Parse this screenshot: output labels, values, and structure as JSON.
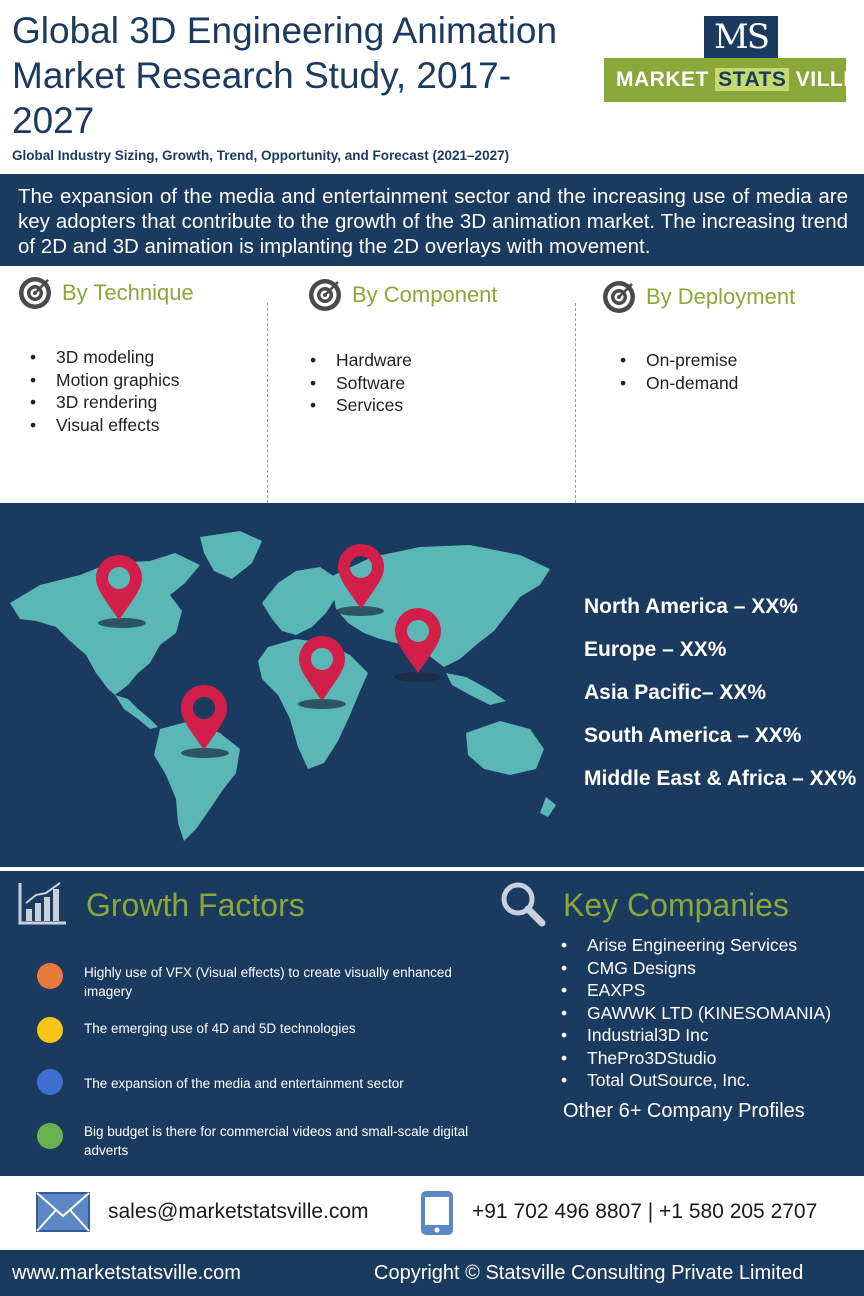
{
  "header": {
    "title": "Global 3D Engineering Animation Market Research Study, 2017-2027",
    "subtitle": "Global Industry Sizing, Growth, Trend, Opportunity, and Forecast (2021–2027)"
  },
  "logo": {
    "monogram": "MS",
    "word1": "MARKET",
    "word2": "STATS",
    "word3": "VILLE"
  },
  "intro": "The expansion of the media and entertainment sector and the increasing use of media are key adopters that contribute to the growth of the 3D animation market. The increasing trend of 2D and 3D animation is implanting the 2D overlays with movement.",
  "segments": [
    {
      "title": "By Technique",
      "items": [
        "3D modeling",
        "Motion graphics",
        "3D rendering",
        "Visual effects"
      ]
    },
    {
      "title": "By Component",
      "items": [
        "Hardware",
        "Software",
        "Services"
      ]
    },
    {
      "title": "By  Deployment",
      "items": [
        "On-premise",
        "On-demand"
      ]
    }
  ],
  "regions": [
    "North America – XX%",
    "Europe – XX%",
    "Asia Pacific– XX%",
    "South America – XX%",
    "Middle East & Africa – XX%"
  ],
  "growth_factors": {
    "title": "Growth Factors",
    "items": [
      {
        "text": "Highly use of VFX (Visual effects) to create visually enhanced imagery",
        "color": "#e8793a"
      },
      {
        "text": "The emerging use of 4D and 5D technologies",
        "color": "#f5c518"
      },
      {
        "text": "The expansion of the media and entertainment sector",
        "color": "#3f6fd1"
      },
      {
        "text": "Big budget is there for commercial videos and small-scale digital adverts",
        "color": "#6ab04c"
      }
    ]
  },
  "key_companies": {
    "title": "Key Companies",
    "items": [
      "Arise Engineering Services",
      "CMG Designs",
      "EAXPS",
      "GAWWK LTD (KINESOMANIA)",
      "Industrial3D Inc",
      "ThePro3DStudio",
      "Total OutSource, Inc."
    ],
    "other": "Other 6+ Company Profiles"
  },
  "contact": {
    "email": "sales@marketstatsville.com",
    "phone": "+91 702 496 8807  |  +1 580 205 2707"
  },
  "footer": {
    "website": "www.marketstatsville.com",
    "copyright": "Copyright © Statsville Consulting Private Limited"
  },
  "colors": {
    "navy": "#1b3a5f",
    "accent_green": "#8aa73a",
    "map_teal": "#5bb7b5",
    "pin_red": "#d21f4a"
  }
}
